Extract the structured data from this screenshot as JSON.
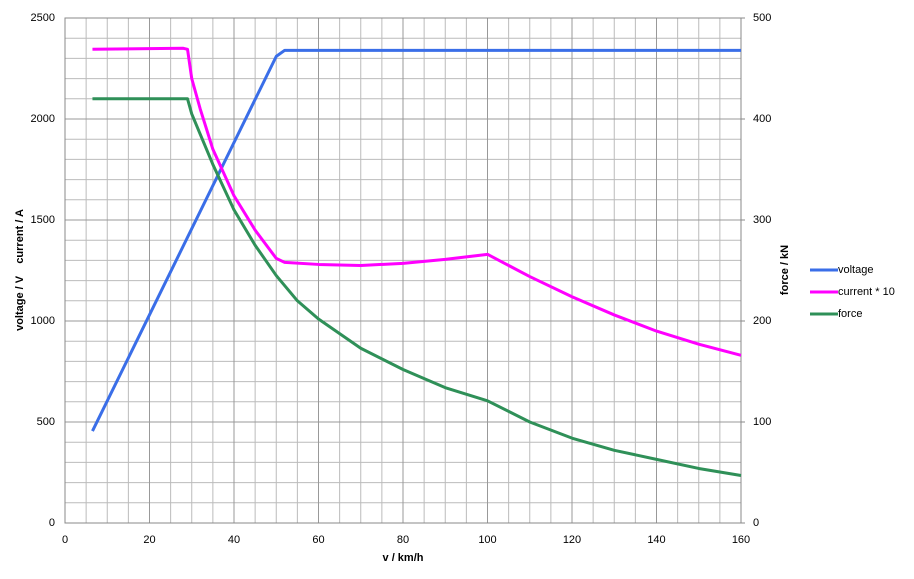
{
  "chart_data": {
    "type": "line",
    "xlabel": "v / km/h",
    "ylabel": "voltage / V    current / A",
    "y2label": "force / kN",
    "xlim": [
      0,
      160
    ],
    "xticks": [
      0,
      20,
      40,
      60,
      80,
      100,
      120,
      140,
      160
    ],
    "ylim": [
      0,
      2500
    ],
    "yticks": [
      0,
      500,
      1000,
      1500,
      2000,
      2500
    ],
    "y2lim": [
      0,
      500
    ],
    "y2ticks": [
      0,
      100,
      200,
      300,
      400,
      500
    ],
    "grid": true,
    "legend": "right",
    "series": [
      {
        "name": "voltage",
        "color": "#3a6ee8",
        "x": [
          6.5,
          50,
          52,
          160
        ],
        "values": [
          455,
          2310,
          2340,
          2340
        ]
      },
      {
        "name": "current * 10",
        "color": "#ff00ff",
        "x": [
          6.5,
          28,
          29,
          30,
          32,
          35,
          40,
          45,
          50,
          52,
          60,
          70,
          80,
          90,
          100,
          110,
          120,
          130,
          140,
          150,
          160
        ],
        "values": [
          2345,
          2350,
          2345,
          2200,
          2050,
          1850,
          1620,
          1450,
          1310,
          1290,
          1280,
          1275,
          1285,
          1305,
          1330,
          1220,
          1120,
          1030,
          950,
          885,
          830
        ]
      },
      {
        "name": "force",
        "color": "#2f9058",
        "axis": "y2",
        "x": [
          6.5,
          28,
          29,
          30,
          32,
          35,
          40,
          45,
          50,
          55,
          60,
          70,
          80,
          90,
          100,
          110,
          120,
          130,
          140,
          150,
          160
        ],
        "values": [
          420,
          420,
          420,
          405,
          385,
          355,
          310,
          275,
          245,
          220,
          202,
          173,
          152,
          134,
          121,
          100,
          84,
          72,
          63,
          54,
          47
        ]
      }
    ]
  }
}
